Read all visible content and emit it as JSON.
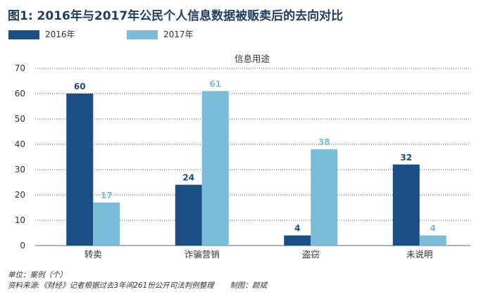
{
  "title": "图1: 2016年与2017年公民个人信息数据被贩卖后的去向对比",
  "colors": {
    "2016": "#1a4e85",
    "2017": "#7bbcd9",
    "axis": "#666666",
    "grid": "#555555"
  },
  "chart_data": {
    "type": "bar",
    "title": "图1: 2016年与2017年公民个人信息数据被贩卖后的去向对比",
    "subtitle": "信息用途",
    "categories": [
      "转卖",
      "诈骗营销",
      "盗窃",
      "未说明"
    ],
    "series": [
      {
        "name": "2016年",
        "values": [
          60,
          24,
          4,
          32
        ]
      },
      {
        "name": "2017年",
        "values": [
          17,
          61,
          38,
          4
        ]
      }
    ],
    "ylim": [
      0,
      70
    ],
    "yticks": [
      0,
      10,
      20,
      30,
      40,
      50,
      60,
      70
    ],
    "grid": "dotted horizontal",
    "legend": "top-left"
  },
  "footnotes": {
    "unit": "单位：案例（个）",
    "source": "资料来源:《财经》记者根据过去3年间261份公开司法判例整理",
    "credit": "制图：颜斌"
  }
}
